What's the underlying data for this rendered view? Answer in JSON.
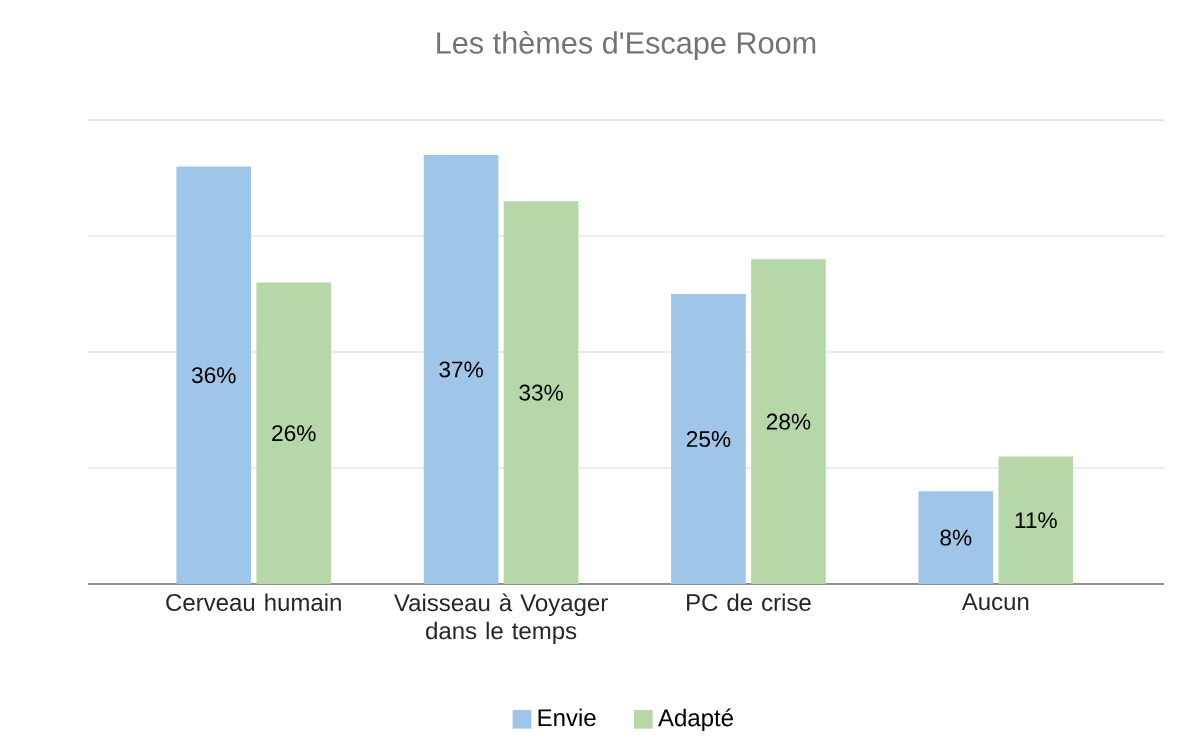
{
  "chart_data": {
    "type": "bar",
    "title": "Les thèmes d'Escape Room",
    "categories": [
      "Cerveau humain",
      "Vaisseau à Voyager dans le temps",
      "PC de crise",
      "Aucun"
    ],
    "series": [
      {
        "name": "Envie",
        "color": "#9fc5e8",
        "values": [
          36,
          37,
          25,
          8
        ],
        "value_labels": [
          "36%",
          "37%",
          "25%",
          "8%"
        ]
      },
      {
        "name": "Adapté",
        "color": "#b6d7a8",
        "values": [
          26,
          33,
          28,
          11
        ],
        "value_labels": [
          "26%",
          "33%",
          "28%",
          "11%"
        ]
      }
    ],
    "tick_labels": "x",
    "grid": "y",
    "legend": "bottom"
  }
}
